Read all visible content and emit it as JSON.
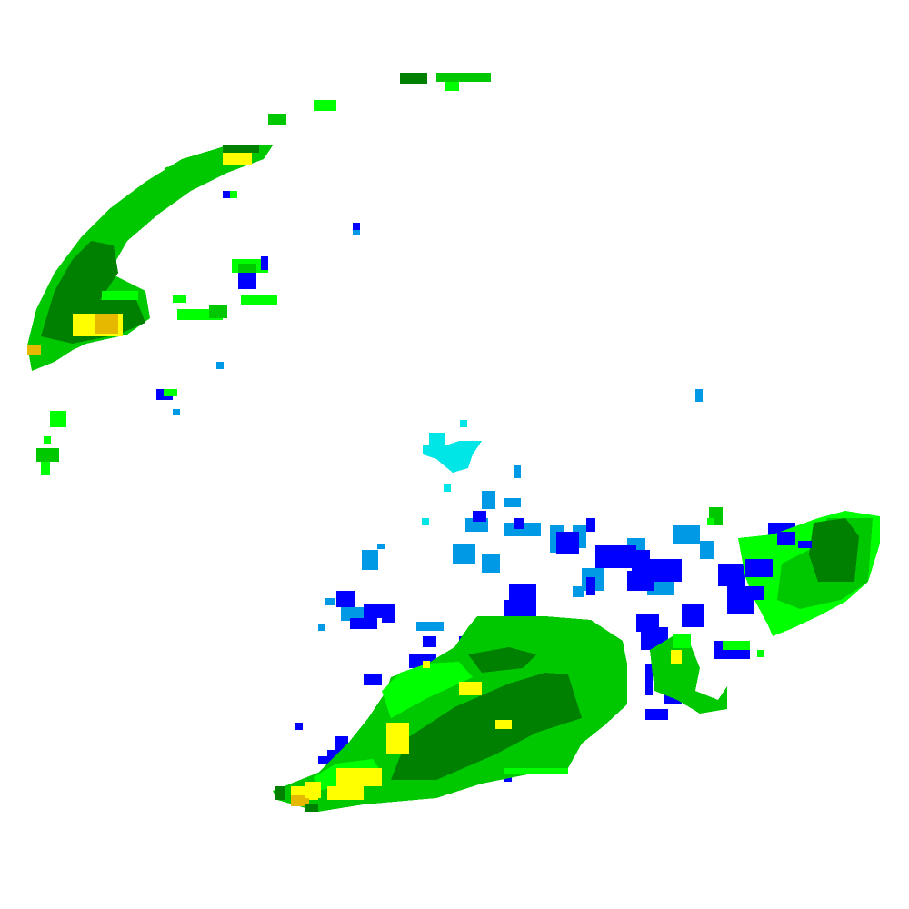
{
  "map": {
    "type": "weather-radar-reflectivity-tile",
    "background": "#ffffff",
    "palette": {
      "light_blue": "#0099e6",
      "cyan": "#00e5e5",
      "blue": "#0000ff",
      "bright_green": "#00ff00",
      "green": "#00c800",
      "dark_green": "#008000",
      "yellow": "#ffff00",
      "gold": "#e6b800"
    }
  }
}
